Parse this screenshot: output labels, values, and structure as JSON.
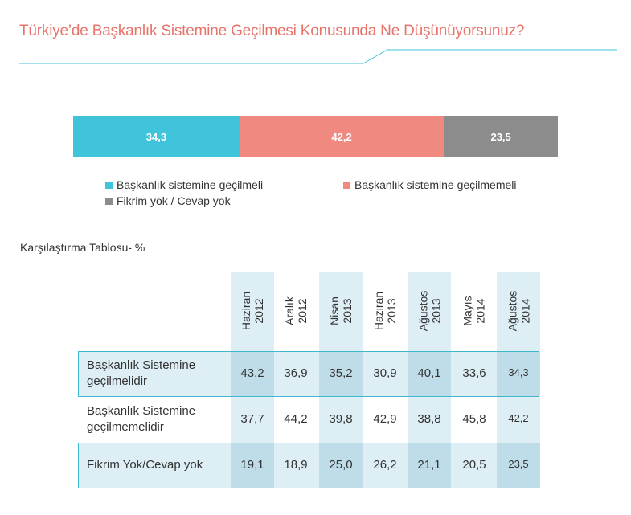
{
  "title": "Türkiye’de Başkanlık Sistemine Geçilmesi Konusunda Ne Düşünüyorsunuz?",
  "colors": {
    "accent": "#3fc4dc",
    "salmon": "#f08a80",
    "grey": "#8c8c8c",
    "title": "#e8736a"
  },
  "chart_data": [
    {
      "type": "bar",
      "orientation": "horizontal-stacked",
      "title": "",
      "categories": [
        ""
      ],
      "series": [
        {
          "name": "Başkanlık sistemine geçilmeli",
          "values": [
            34.3
          ],
          "label": "34,3",
          "color": "#3fc4dc"
        },
        {
          "name": "Başkanlık sistemine geçilmemeli",
          "values": [
            42.2
          ],
          "label": "42,2",
          "color": "#f08a80"
        },
        {
          "name": "Fikrim yok / Cevap yok",
          "values": [
            23.5
          ],
          "label": "23,5",
          "color": "#8c8c8c"
        }
      ],
      "legend": "bottom"
    },
    {
      "type": "table",
      "title": "Karşılaştırma Tablosu- %",
      "columns": [
        {
          "line1": "Haziran",
          "line2": "2012"
        },
        {
          "line1": "Aralık",
          "line2": "2012"
        },
        {
          "line1": "Nisan",
          "line2": "2013"
        },
        {
          "line1": "Haziran",
          "line2": "2013"
        },
        {
          "line1": "Ağustos",
          "line2": "2013"
        },
        {
          "line1": "Mayıs",
          "line2": "2014"
        },
        {
          "line1": "Ağustos",
          "line2": "2014"
        }
      ],
      "rows": [
        {
          "line1": "Başkanlık Sistemine",
          "line2": "geçilmelidir",
          "values": [
            "43,2",
            "36,9",
            "35,2",
            "30,9",
            "40,1",
            "33,6",
            "34,3"
          ]
        },
        {
          "line1": "Başkanlık Sistemine",
          "line2": "geçilmemelidir",
          "values": [
            "37,7",
            "44,2",
            "39,8",
            "42,9",
            "38,8",
            "45,8",
            "42,2"
          ]
        },
        {
          "line1": "Fikrim Yok/Cevap yok",
          "line2": "",
          "values": [
            "19,1",
            "18,9",
            "25,0",
            "26,2",
            "21,1",
            "20,5",
            "23,5"
          ]
        }
      ]
    }
  ]
}
